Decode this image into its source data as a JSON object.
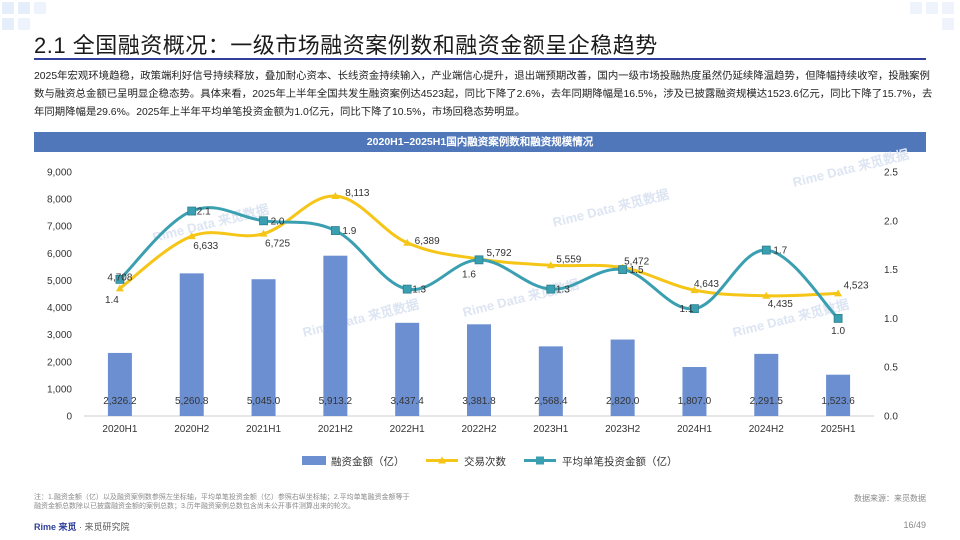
{
  "page": {
    "title": "2.1 全国融资概况：一级市场融资案例数和融资金额呈企稳趋势",
    "intro": "2025年宏观环境趋稳，政策端利好信号持续释放，叠加耐心资本、长线资金持续输入，产业端信心提升，退出端预期改善，国内一级市场投融热度虽然仍延续降温趋势，但降幅持续收窄，投融案例数与融资总金额已呈明显企稳态势。具体来看，2025年上半年全国共发生融资案例达4523起，同比下降了2.6%，去年同期降幅是16.5%，涉及已披露融资规模达1523.6亿元，同比下降了15.7%，去年同期降幅是29.6%。2025年上半年平均单笔投资金额为1.0亿元，同比下降了10.5%，市场回稳态势明显。",
    "footnote_1": "注：1.融资金额（亿）以及融资案例数参照左坐标轴，平均单笔投资金额（亿）参照右纵坐标轴；2.平均单笔融资金额等于",
    "footnote_2": "融资金额总数除以已披露融资金额的案例总数；3.历年融资案例总数包含尚未公开事件测算出来的轮次。",
    "source": "数据来源：来觅数据",
    "brand_main": "Rime 来觅",
    "brand_sub": "· 来觅研究院",
    "page_number": "16/49",
    "watermark": "Rime Data 来觅数据"
  },
  "chart_data": {
    "type": "bar+line",
    "title": "2020H1–2025H1国内融资案例数和融资规模情况",
    "categories": [
      "2020H1",
      "2020H2",
      "2021H1",
      "2021H2",
      "2022H1",
      "2022H2",
      "2023H1",
      "2023H2",
      "2024H1",
      "2024H2",
      "2025H1"
    ],
    "y_left": {
      "min": 0,
      "max": 9000,
      "ticks": [
        "0",
        "1,000",
        "2,000",
        "3,000",
        "4,000",
        "5,000",
        "6,000",
        "7,000",
        "8,000",
        "9,000"
      ]
    },
    "y_right": {
      "min": 0,
      "max": 2.5,
      "ticks": [
        "0.0",
        "0.5",
        "1.0",
        "1.5",
        "2.0",
        "2.5"
      ]
    },
    "series": [
      {
        "name": "融资金额（亿）",
        "kind": "bar",
        "axis": "left",
        "color": "#6b8fd0",
        "values": [
          2326.2,
          5260.8,
          5045.0,
          5913.2,
          3437.4,
          3381.8,
          2568.4,
          2820.0,
          1807.0,
          2291.5,
          1523.6
        ],
        "labels": [
          "2,326.2",
          "5,260.8",
          "5,045.0",
          "5,913.2",
          "3,437.4",
          "3,381.8",
          "2,568.4",
          "2,820.0",
          "1,807.0",
          "2,291.5",
          "1,523.6"
        ]
      },
      {
        "name": "交易次数",
        "kind": "line",
        "axis": "left",
        "color": "#f5c518",
        "values": [
          4708,
          6633,
          6725,
          8113,
          6389,
          5792,
          5559,
          5472,
          4643,
          4435,
          4523
        ],
        "labels": [
          "4,708",
          "6,633",
          "6,725",
          "8,113",
          "6,389",
          "5,792",
          "5,559",
          "5,472",
          "4,643",
          "4,435",
          "4,523"
        ]
      },
      {
        "name": "平均单笔投资金额（亿）",
        "kind": "line",
        "axis": "right",
        "color": "#3a9fb0",
        "values": [
          1.4,
          2.1,
          2.0,
          1.9,
          1.3,
          1.6,
          1.3,
          1.5,
          1.1,
          1.7,
          1.0
        ],
        "labels": [
          "1.4",
          "2.1",
          "2.0",
          "1.9",
          "1.3",
          "1.6",
          "1.3",
          "1.5",
          "1.1",
          "1.7",
          "1.0"
        ]
      }
    ],
    "legend_position": "bottom-center",
    "grid": false
  },
  "colors": {
    "accent": "#2f3f9a",
    "header_bar": "#4f77b9",
    "bar": "#6b8fd0",
    "line_count": "#f5c518",
    "line_avg": "#3a9fb0"
  }
}
